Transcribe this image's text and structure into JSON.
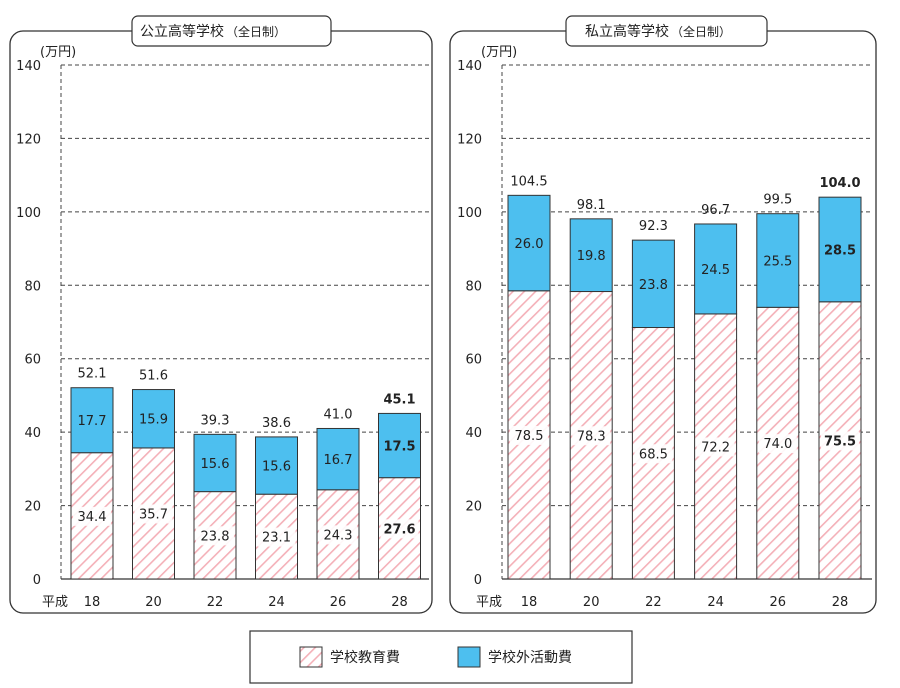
{
  "chart_data": [
    {
      "type": "bar",
      "stacked": true,
      "title": "公立高等学校",
      "subtitle": "（全日制）",
      "ylabel": "(万円)",
      "xlabel_prefix": "平成",
      "ylim": [
        0,
        140
      ],
      "yticks": [
        0,
        20,
        40,
        60,
        80,
        100,
        120,
        140
      ],
      "categories": [
        "18",
        "20",
        "22",
        "24",
        "26",
        "28"
      ],
      "series": [
        {
          "name": "学校教育費",
          "values": [
            34.4,
            35.7,
            23.8,
            23.1,
            24.3,
            27.6
          ]
        },
        {
          "name": "学校外活動費",
          "values": [
            17.7,
            15.9,
            15.6,
            15.6,
            16.7,
            17.5
          ]
        }
      ],
      "totals": [
        52.1,
        51.6,
        39.3,
        38.6,
        41.0,
        45.1
      ],
      "value_labels": {
        "lower": [
          "34.4",
          "35.7",
          "23.8",
          "23.1",
          "24.3",
          "27.6"
        ],
        "upper": [
          "17.7",
          "15.9",
          "15.6",
          "15.6",
          "16.7",
          "17.5"
        ],
        "totals": [
          "52.1",
          "51.6",
          "39.3",
          "38.6",
          "41.0",
          "45.1"
        ]
      },
      "emphasized_index": 5
    },
    {
      "type": "bar",
      "stacked": true,
      "title": "私立高等学校",
      "subtitle": "（全日制）",
      "ylabel": "(万円)",
      "xlabel_prefix": "平成",
      "ylim": [
        0,
        140
      ],
      "yticks": [
        0,
        20,
        40,
        60,
        80,
        100,
        120,
        140
      ],
      "categories": [
        "18",
        "20",
        "22",
        "24",
        "26",
        "28"
      ],
      "series": [
        {
          "name": "学校教育費",
          "values": [
            78.5,
            78.3,
            68.5,
            72.2,
            74.0,
            75.5
          ]
        },
        {
          "name": "学校外活動費",
          "values": [
            26.0,
            19.8,
            23.8,
            24.5,
            25.5,
            28.5
          ]
        }
      ],
      "totals": [
        104.5,
        98.1,
        92.3,
        96.7,
        99.5,
        104.0
      ],
      "value_labels": {
        "lower": [
          "78.5",
          "78.3",
          "68.5",
          "72.2",
          "74.0",
          "75.5"
        ],
        "upper": [
          "26.0",
          "19.8",
          "23.8",
          "24.5",
          "25.5",
          "28.5"
        ],
        "totals": [
          "104.5",
          "98.1",
          "92.3",
          "96.7",
          "99.5",
          "104.0"
        ]
      },
      "emphasized_index": 5
    }
  ],
  "legend": {
    "items": [
      {
        "label": "学校教育費",
        "style": "hatched-pink"
      },
      {
        "label": "学校外活動費",
        "style": "blue"
      }
    ]
  },
  "colors": {
    "school_fill": "#ffffff",
    "school_hatch": "#f4b0b8",
    "outside_fill": "#4dbfef",
    "bar_stroke": "#333333",
    "frame_stroke": "#333333",
    "grid": "#444444"
  }
}
